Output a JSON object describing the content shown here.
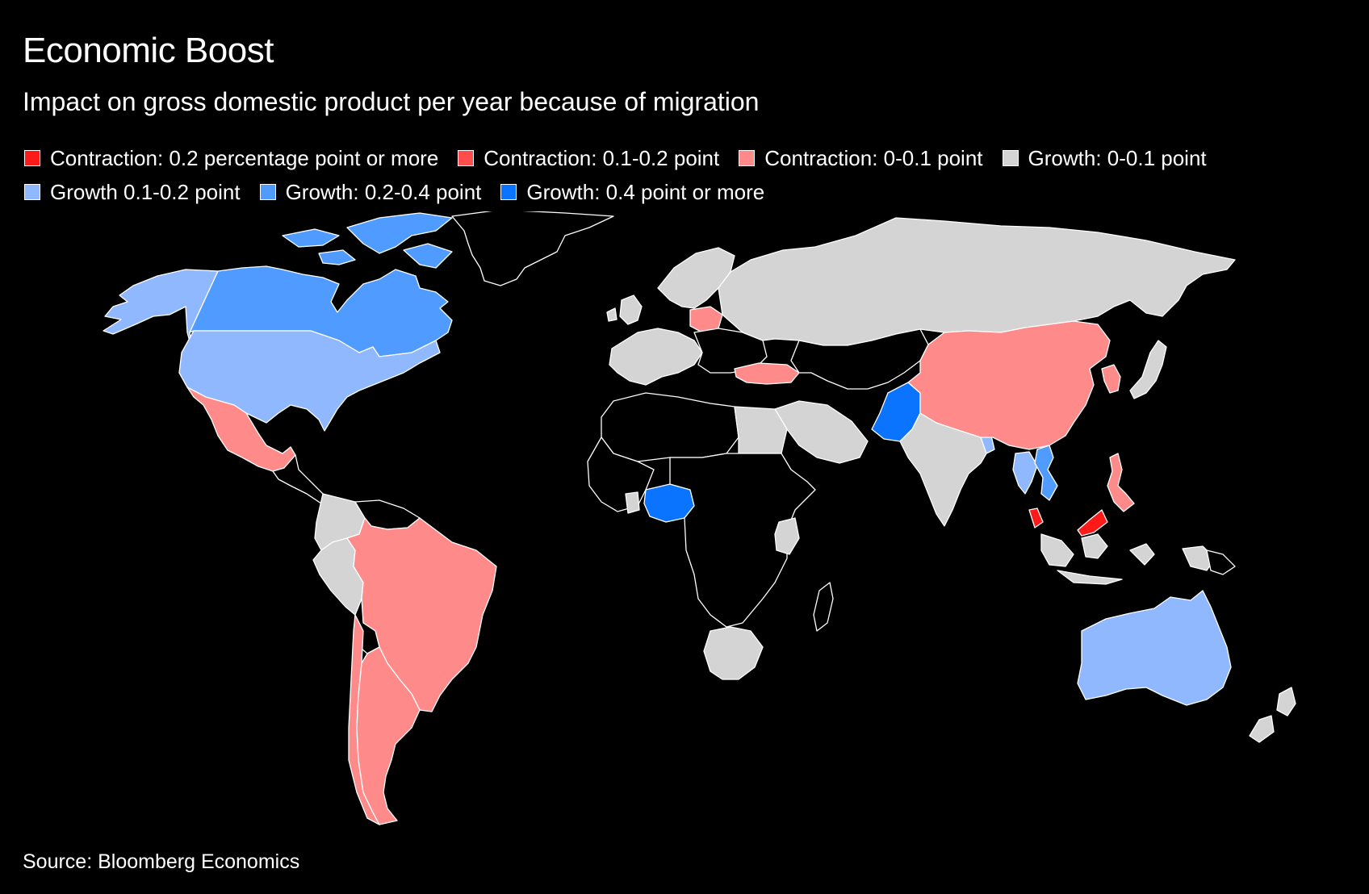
{
  "title": "Economic Boost",
  "subtitle": "Impact on gross domestic product per year because of migration",
  "source": "Source: Bloomberg Economics",
  "colors": {
    "background": "#000000",
    "border": "#ffffff",
    "no_data": "#000000",
    "contraction_02_plus": "#ff1a1a",
    "contraction_01_02": "#ff4d4d",
    "contraction_0_01": "#ff8a8a",
    "growth_0_01": "#d4d4d4",
    "growth_01_02": "#8fb8ff",
    "growth_02_04": "#4f9bff",
    "growth_04_plus": "#0a74ff"
  },
  "legend": {
    "rows": [
      [
        {
          "label": "Contraction: 0.2 percentage point or more",
          "color": "#ff1a1a"
        },
        {
          "label": "Contraction: 0.1-0.2 point",
          "color": "#ff4d4d"
        },
        {
          "label": "Contraction: 0-0.1 point",
          "color": "#ff8a8a"
        },
        {
          "label": "Growth: 0-0.1 point",
          "color": "#d4d4d4"
        }
      ],
      [
        {
          "label": "Growth 0.1-0.2 point",
          "color": "#8fb8ff"
        },
        {
          "label": "Growth: 0.2-0.4 point",
          "color": "#4f9bff"
        },
        {
          "label": "Growth: 0.4 point or more",
          "color": "#0a74ff"
        }
      ]
    ]
  },
  "map": {
    "regions": [
      {
        "id": "alaska",
        "category": "growth_01_02",
        "color": "#8fb8ff"
      },
      {
        "id": "canada",
        "category": "growth_02_04",
        "color": "#4f9bff"
      },
      {
        "id": "canadian-arctic-islands",
        "category": "growth_02_04",
        "color": "#4f9bff"
      },
      {
        "id": "united-states",
        "category": "growth_01_02",
        "color": "#8fb8ff"
      },
      {
        "id": "mexico",
        "category": "contraction_0_01",
        "color": "#ff8a8a"
      },
      {
        "id": "greenland",
        "category": "no_data",
        "color": "#000000"
      },
      {
        "id": "central-america",
        "category": "no_data",
        "color": "#000000"
      },
      {
        "id": "colombia",
        "category": "growth_0_01",
        "color": "#d4d4d4"
      },
      {
        "id": "venezuela",
        "category": "no_data",
        "color": "#000000"
      },
      {
        "id": "peru",
        "category": "growth_0_01",
        "color": "#d4d4d4"
      },
      {
        "id": "brazil",
        "category": "contraction_0_01",
        "color": "#ff8a8a"
      },
      {
        "id": "bolivia",
        "category": "no_data",
        "color": "#000000"
      },
      {
        "id": "chile",
        "category": "contraction_0_01",
        "color": "#ff8a8a"
      },
      {
        "id": "argentina",
        "category": "contraction_0_01",
        "color": "#ff8a8a"
      },
      {
        "id": "western-europe",
        "category": "growth_0_01",
        "color": "#d4d4d4"
      },
      {
        "id": "uk",
        "category": "growth_0_01",
        "color": "#d4d4d4"
      },
      {
        "id": "scandinavia",
        "category": "growth_0_01",
        "color": "#d4d4d4"
      },
      {
        "id": "poland",
        "category": "contraction_0_01",
        "color": "#ff8a8a"
      },
      {
        "id": "eastern-europe",
        "category": "no_data",
        "color": "#000000"
      },
      {
        "id": "turkey",
        "category": "contraction_0_01",
        "color": "#ff8a8a"
      },
      {
        "id": "russia",
        "category": "growth_0_01",
        "color": "#d4d4d4"
      },
      {
        "id": "central-asia",
        "category": "no_data",
        "color": "#000000"
      },
      {
        "id": "saudi-arabia",
        "category": "growth_0_01",
        "color": "#d4d4d4"
      },
      {
        "id": "north-africa",
        "category": "no_data",
        "color": "#000000"
      },
      {
        "id": "egypt",
        "category": "growth_0_01",
        "color": "#d4d4d4"
      },
      {
        "id": "west-africa",
        "category": "no_data",
        "color": "#000000"
      },
      {
        "id": "nigeria",
        "category": "growth_04_plus",
        "color": "#0a74ff"
      },
      {
        "id": "ghana",
        "category": "growth_0_01",
        "color": "#d4d4d4"
      },
      {
        "id": "central-africa",
        "category": "no_data",
        "color": "#000000"
      },
      {
        "id": "kenya",
        "category": "growth_0_01",
        "color": "#d4d4d4"
      },
      {
        "id": "south-africa",
        "category": "growth_0_01",
        "color": "#d4d4d4"
      },
      {
        "id": "madagascar",
        "category": "no_data",
        "color": "#000000"
      },
      {
        "id": "pakistan",
        "category": "growth_04_plus",
        "color": "#0a74ff"
      },
      {
        "id": "india",
        "category": "growth_0_01",
        "color": "#d4d4d4"
      },
      {
        "id": "bangladesh",
        "category": "growth_01_02",
        "color": "#8fb8ff"
      },
      {
        "id": "china",
        "category": "contraction_0_01",
        "color": "#ff8a8a"
      },
      {
        "id": "korea",
        "category": "contraction_0_01",
        "color": "#ff8a8a"
      },
      {
        "id": "japan",
        "category": "growth_0_01",
        "color": "#d4d4d4"
      },
      {
        "id": "thailand",
        "category": "growth_01_02",
        "color": "#8fb8ff"
      },
      {
        "id": "vietnam",
        "category": "growth_02_04",
        "color": "#4f9bff"
      },
      {
        "id": "philippines",
        "category": "contraction_0_01",
        "color": "#ff8a8a"
      },
      {
        "id": "malaysia",
        "category": "contraction_02_plus",
        "color": "#ff1a1a"
      },
      {
        "id": "indonesia",
        "category": "growth_0_01",
        "color": "#d4d4d4"
      },
      {
        "id": "papua-new-guinea",
        "category": "no_data",
        "color": "#000000"
      },
      {
        "id": "australia",
        "category": "growth_01_02",
        "color": "#8fb8ff"
      },
      {
        "id": "new-zealand",
        "category": "growth_0_01",
        "color": "#d4d4d4"
      }
    ]
  }
}
